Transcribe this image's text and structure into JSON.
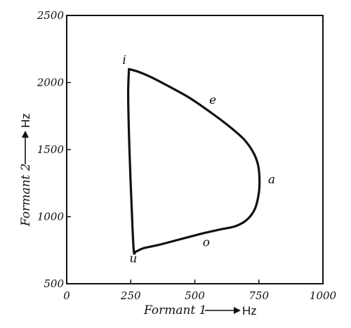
{
  "chart_data": {
    "type": "line",
    "title": "",
    "xlabel": "Formant 1",
    "xunit": "Hz",
    "ylabel": "Formant 2",
    "yunit": "Hz",
    "xlim": [
      0,
      1000
    ],
    "ylim": [
      500,
      2500
    ],
    "xticks": [
      "0",
      "250",
      "500",
      "750",
      "1000"
    ],
    "yticks": [
      "500",
      "1000",
      "1500",
      "2000",
      "2500"
    ],
    "grid": false,
    "series": [
      {
        "x": [
          243,
          280,
          330,
          400,
          480,
          560,
          630,
          690,
          725,
          745,
          752,
          750,
          735,
          705,
          660,
          600,
          520,
          440,
          360,
          300,
          270,
          262,
          255,
          245,
          240,
          243
        ],
        "y": [
          2100,
          2080,
          2040,
          1970,
          1885,
          1780,
          1680,
          1580,
          1490,
          1400,
          1300,
          1180,
          1060,
          980,
          930,
          905,
          870,
          830,
          790,
          765,
          740,
          745,
          1000,
          1500,
          1900,
          2100
        ]
      }
    ],
    "annotations": [
      {
        "text": "i",
        "x": 225,
        "y": 2140
      },
      {
        "text": "e",
        "x": 570,
        "y": 1840
      },
      {
        "text": "a",
        "x": 800,
        "y": 1250
      },
      {
        "text": "o",
        "x": 545,
        "y": 780
      },
      {
        "text": "u",
        "x": 260,
        "y": 660
      }
    ]
  }
}
